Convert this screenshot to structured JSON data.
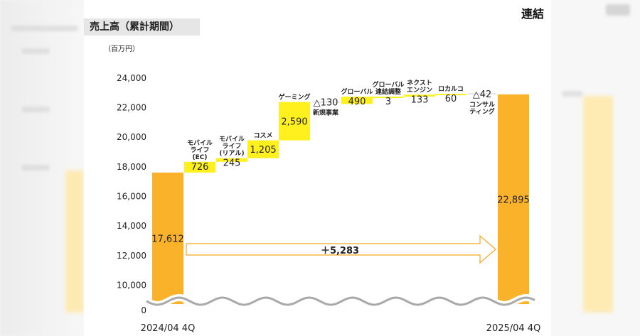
{
  "header": {
    "title": "売上高（累計期間）",
    "corner_label": "連結"
  },
  "colors": {
    "orange": "#fbb22b",
    "yellow": "#fff01e",
    "arrow": "#f5a623",
    "axis_text": "#222222"
  },
  "chart_data": {
    "type": "waterfall",
    "unit_label": "（百万円）",
    "y_ticks": [
      0,
      10000,
      12000,
      14000,
      16000,
      18000,
      20000,
      22000,
      24000
    ],
    "y_tick_labels": [
      "0",
      "10,000",
      "12,000",
      "14,000",
      "16,000",
      "18,000",
      "20,000",
      "22,000",
      "24,000"
    ],
    "ylim": [
      9000,
      25000
    ],
    "axis_break": true,
    "bars": [
      {
        "kind": "total",
        "label_bottom": "2024/04 4Q",
        "value": 17612,
        "value_label": "17,612"
      },
      {
        "kind": "delta",
        "label_top": "モバイル\nライフ\n(EC)",
        "value": 726,
        "value_label": "726"
      },
      {
        "kind": "delta",
        "label_top": "モバイル\nライフ\n(リアル)",
        "value": 245,
        "value_label": "245"
      },
      {
        "kind": "delta",
        "label_top": "コスメ",
        "value": 1205,
        "value_label": "1,205"
      },
      {
        "kind": "delta",
        "label_top": "ゲーミング",
        "value": 2590,
        "value_label": "2,590"
      },
      {
        "kind": "delta",
        "label_bottom": "新規事業",
        "value": -130,
        "value_label": "△130"
      },
      {
        "kind": "delta",
        "label_top": "グローバル",
        "value": 490,
        "value_label": "490"
      },
      {
        "kind": "delta",
        "label_top": "グローバル\n連結調整",
        "value": 3,
        "value_label": "3"
      },
      {
        "kind": "delta",
        "label_top": "ネクスト\nエンジン",
        "value": 133,
        "value_label": "133"
      },
      {
        "kind": "delta",
        "label_top": "ロカルコ",
        "value": 60,
        "value_label": "60"
      },
      {
        "kind": "delta",
        "label_bottom": "コンサル\nティング",
        "value": -42,
        "value_label": "△42"
      },
      {
        "kind": "total",
        "label_bottom": "2025/04 4Q",
        "value": 22895,
        "value_label": "22,895"
      }
    ],
    "growth_arrow": {
      "label": "＋5,283"
    }
  }
}
